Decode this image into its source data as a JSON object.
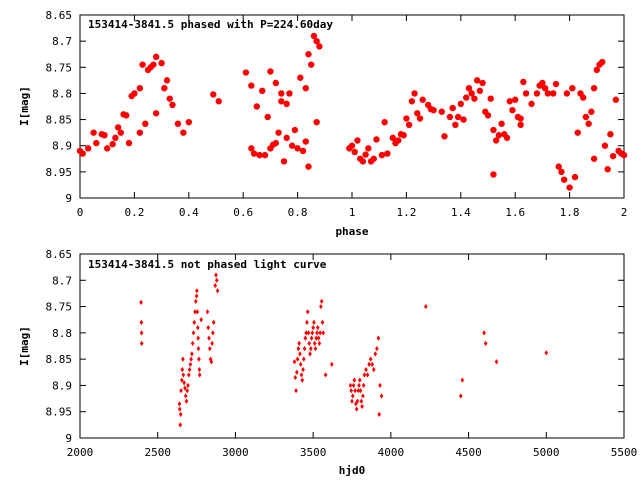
{
  "chart_data": [
    {
      "type": "scatter",
      "title": "153414-3841.5 phased with P=224.60day",
      "xlabel": "phase",
      "ylabel": "I[mag]",
      "xlim": [
        0,
        2
      ],
      "ylim": [
        8.65,
        9.0
      ],
      "y_inverted": true,
      "grid": false,
      "marker_color": "#ff0000",
      "marker": "filled-circle",
      "x_ticks": [
        0,
        0.2,
        0.4,
        0.6,
        0.8,
        1,
        1.2,
        1.4,
        1.6,
        1.8,
        2
      ],
      "x_tick_labels": [
        "0",
        "0.2",
        "0.4",
        "0.6",
        "0.8",
        "1",
        "1.2",
        "1.4",
        "1.6",
        "1.8",
        "2"
      ],
      "y_ticks": [
        8.65,
        8.7,
        8.75,
        8.8,
        8.85,
        8.9,
        8.95,
        9.0
      ],
      "y_tick_labels": [
        "8.65",
        "8.7",
        "8.75",
        "8.8",
        "8.85",
        "8.9",
        "8.95",
        "9"
      ],
      "points": [
        [
          0.0,
          8.91
        ],
        [
          0.01,
          8.915
        ],
        [
          0.03,
          8.905
        ],
        [
          0.05,
          8.875
        ],
        [
          0.06,
          8.895
        ],
        [
          0.08,
          8.878
        ],
        [
          0.09,
          8.88
        ],
        [
          0.1,
          8.905
        ],
        [
          0.12,
          8.897
        ],
        [
          0.13,
          8.885
        ],
        [
          0.14,
          8.865
        ],
        [
          0.15,
          8.875
        ],
        [
          0.16,
          8.84
        ],
        [
          0.17,
          8.842
        ],
        [
          0.18,
          8.895
        ],
        [
          0.19,
          8.805
        ],
        [
          0.2,
          8.8
        ],
        [
          0.22,
          8.79
        ],
        [
          0.22,
          8.875
        ],
        [
          0.23,
          8.745
        ],
        [
          0.24,
          8.858
        ],
        [
          0.25,
          8.755
        ],
        [
          0.26,
          8.75
        ],
        [
          0.27,
          8.745
        ],
        [
          0.28,
          8.838
        ],
        [
          0.28,
          8.73
        ],
        [
          0.3,
          8.742
        ],
        [
          0.31,
          8.79
        ],
        [
          0.32,
          8.775
        ],
        [
          0.33,
          8.81
        ],
        [
          0.34,
          8.822
        ],
        [
          0.36,
          8.858
        ],
        [
          0.38,
          8.875
        ],
        [
          0.4,
          8.855
        ],
        [
          0.49,
          8.802
        ],
        [
          0.51,
          8.815
        ],
        [
          0.61,
          8.76
        ],
        [
          0.63,
          8.785
        ],
        [
          0.63,
          8.905
        ],
        [
          0.64,
          8.915
        ],
        [
          0.65,
          8.825
        ],
        [
          0.66,
          8.918
        ],
        [
          0.67,
          8.795
        ],
        [
          0.68,
          8.918
        ],
        [
          0.69,
          8.845
        ],
        [
          0.7,
          8.758
        ],
        [
          0.7,
          8.905
        ],
        [
          0.71,
          8.898
        ],
        [
          0.72,
          8.78
        ],
        [
          0.72,
          8.895
        ],
        [
          0.73,
          8.875
        ],
        [
          0.74,
          8.8
        ],
        [
          0.74,
          8.815
        ],
        [
          0.75,
          8.93
        ],
        [
          0.76,
          8.885
        ],
        [
          0.76,
          8.82
        ],
        [
          0.77,
          8.8
        ],
        [
          0.78,
          8.9
        ],
        [
          0.79,
          8.87
        ],
        [
          0.8,
          8.905
        ],
        [
          0.81,
          8.77
        ],
        [
          0.82,
          8.91
        ],
        [
          0.83,
          8.892
        ],
        [
          0.83,
          8.79
        ],
        [
          0.84,
          8.94
        ],
        [
          0.84,
          8.725
        ],
        [
          0.85,
          8.745
        ],
        [
          0.86,
          8.69
        ],
        [
          0.87,
          8.855
        ],
        [
          0.87,
          8.7
        ],
        [
          0.88,
          8.71
        ],
        [
          0.99,
          8.905
        ],
        [
          1.0,
          8.9
        ],
        [
          1.01,
          8.912
        ],
        [
          1.02,
          8.89
        ],
        [
          1.03,
          8.925
        ],
        [
          1.04,
          8.93
        ],
        [
          1.05,
          8.917
        ],
        [
          1.06,
          8.905
        ],
        [
          1.07,
          8.93
        ],
        [
          1.08,
          8.925
        ],
        [
          1.09,
          8.888
        ],
        [
          1.11,
          8.918
        ],
        [
          1.12,
          8.855
        ],
        [
          1.13,
          8.915
        ],
        [
          1.15,
          8.885
        ],
        [
          1.16,
          8.895
        ],
        [
          1.17,
          8.89
        ],
        [
          1.18,
          8.878
        ],
        [
          1.19,
          8.88
        ],
        [
          1.2,
          8.848
        ],
        [
          1.21,
          8.86
        ],
        [
          1.22,
          8.815
        ],
        [
          1.23,
          8.8
        ],
        [
          1.24,
          8.838
        ],
        [
          1.25,
          8.848
        ],
        [
          1.26,
          8.812
        ],
        [
          1.28,
          8.822
        ],
        [
          1.29,
          8.83
        ],
        [
          1.3,
          8.832
        ],
        [
          1.33,
          8.835
        ],
        [
          1.34,
          8.882
        ],
        [
          1.36,
          8.845
        ],
        [
          1.37,
          8.828
        ],
        [
          1.38,
          8.86
        ],
        [
          1.39,
          8.845
        ],
        [
          1.4,
          8.82
        ],
        [
          1.41,
          8.85
        ],
        [
          1.42,
          8.808
        ],
        [
          1.43,
          8.79
        ],
        [
          1.44,
          8.8
        ],
        [
          1.45,
          8.81
        ],
        [
          1.46,
          8.775
        ],
        [
          1.47,
          8.795
        ],
        [
          1.48,
          8.78
        ],
        [
          1.49,
          8.835
        ],
        [
          1.5,
          8.842
        ],
        [
          1.51,
          8.81
        ],
        [
          1.52,
          8.87
        ],
        [
          1.52,
          8.955
        ],
        [
          1.53,
          8.89
        ],
        [
          1.54,
          8.88
        ],
        [
          1.55,
          8.858
        ],
        [
          1.56,
          8.878
        ],
        [
          1.57,
          8.885
        ],
        [
          1.58,
          8.815
        ],
        [
          1.59,
          8.832
        ],
        [
          1.6,
          8.812
        ],
        [
          1.61,
          8.845
        ],
        [
          1.62,
          8.86
        ],
        [
          1.62,
          8.848
        ],
        [
          1.63,
          8.778
        ],
        [
          1.64,
          8.8
        ],
        [
          1.66,
          8.82
        ],
        [
          1.68,
          8.8
        ],
        [
          1.69,
          8.785
        ],
        [
          1.7,
          8.78
        ],
        [
          1.71,
          8.79
        ],
        [
          1.72,
          8.8
        ],
        [
          1.74,
          8.8
        ],
        [
          1.75,
          8.782
        ],
        [
          1.76,
          8.94
        ],
        [
          1.77,
          8.95
        ],
        [
          1.78,
          8.965
        ],
        [
          1.79,
          8.8
        ],
        [
          1.8,
          8.98
        ],
        [
          1.81,
          8.79
        ],
        [
          1.82,
          8.96
        ],
        [
          1.83,
          8.875
        ],
        [
          1.84,
          8.8
        ],
        [
          1.85,
          8.808
        ],
        [
          1.86,
          8.845
        ],
        [
          1.87,
          8.858
        ],
        [
          1.88,
          8.835
        ],
        [
          1.89,
          8.79
        ],
        [
          1.89,
          8.925
        ],
        [
          1.9,
          8.755
        ],
        [
          1.91,
          8.745
        ],
        [
          1.92,
          8.74
        ],
        [
          1.93,
          8.9
        ],
        [
          1.94,
          8.945
        ],
        [
          1.95,
          8.878
        ],
        [
          1.96,
          8.92
        ],
        [
          1.97,
          8.812
        ],
        [
          1.98,
          8.91
        ],
        [
          1.99,
          8.915
        ],
        [
          2.0,
          8.918
        ]
      ]
    },
    {
      "type": "scatter",
      "title": "153414-3841.5 not phased light curve",
      "xlabel": "hjd0",
      "ylabel": "I[mag]",
      "xlim": [
        2000,
        5500
      ],
      "ylim": [
        8.65,
        9.0
      ],
      "y_inverted": true,
      "grid": false,
      "marker_color": "#ff0000",
      "marker": "small-diamond",
      "x_ticks": [
        2000,
        2500,
        3000,
        3500,
        4000,
        4500,
        5000,
        5500
      ],
      "x_tick_labels": [
        "2000",
        "2500",
        "3000",
        "3500",
        "4000",
        "4500",
        "5000",
        "5500"
      ],
      "y_ticks": [
        8.65,
        8.7,
        8.75,
        8.8,
        8.85,
        8.9,
        8.95,
        9.0
      ],
      "y_tick_labels": [
        "8.65",
        "8.7",
        "8.75",
        "8.8",
        "8.85",
        "8.9",
        "8.95",
        "9"
      ],
      "points": [
        [
          2393,
          8.742
        ],
        [
          2395,
          8.78
        ],
        [
          2396,
          8.8
        ],
        [
          2397,
          8.82
        ],
        [
          2640,
          8.935
        ],
        [
          2642,
          8.945
        ],
        [
          2645,
          8.975
        ],
        [
          2648,
          8.955
        ],
        [
          2650,
          8.91
        ],
        [
          2655,
          8.89
        ],
        [
          2658,
          8.87
        ],
        [
          2662,
          8.85
        ],
        [
          2665,
          8.88
        ],
        [
          2670,
          8.895
        ],
        [
          2675,
          8.905
        ],
        [
          2680,
          8.92
        ],
        [
          2685,
          8.93
        ],
        [
          2690,
          8.91
        ],
        [
          2695,
          8.9
        ],
        [
          2700,
          8.88
        ],
        [
          2705,
          8.87
        ],
        [
          2710,
          8.86
        ],
        [
          2715,
          8.85
        ],
        [
          2720,
          8.84
        ],
        [
          2725,
          8.82
        ],
        [
          2730,
          8.8
        ],
        [
          2735,
          8.78
        ],
        [
          2740,
          8.76
        ],
        [
          2745,
          8.74
        ],
        [
          2750,
          8.73
        ],
        [
          2752,
          8.72
        ],
        [
          2755,
          8.76
        ],
        [
          2758,
          8.79
        ],
        [
          2760,
          8.81
        ],
        [
          2762,
          8.83
        ],
        [
          2765,
          8.85
        ],
        [
          2768,
          8.87
        ],
        [
          2770,
          8.88
        ],
        [
          2780,
          8.775
        ],
        [
          2820,
          8.76
        ],
        [
          2825,
          8.79
        ],
        [
          2830,
          8.81
        ],
        [
          2835,
          8.83
        ],
        [
          2840,
          8.85
        ],
        [
          2845,
          8.855
        ],
        [
          2850,
          8.82
        ],
        [
          2855,
          8.8
        ],
        [
          2860,
          8.78
        ],
        [
          2870,
          8.71
        ],
        [
          2875,
          8.69
        ],
        [
          2880,
          8.7
        ],
        [
          2885,
          8.72
        ],
        [
          3380,
          8.855
        ],
        [
          3385,
          8.885
        ],
        [
          3390,
          8.91
        ],
        [
          3395,
          8.875
        ],
        [
          3400,
          8.85
        ],
        [
          3405,
          8.83
        ],
        [
          3410,
          8.82
        ],
        [
          3415,
          8.84
        ],
        [
          3420,
          8.86
        ],
        [
          3425,
          8.88
        ],
        [
          3430,
          8.89
        ],
        [
          3435,
          8.87
        ],
        [
          3440,
          8.85
        ],
        [
          3445,
          8.83
        ],
        [
          3450,
          8.81
        ],
        [
          3455,
          8.8
        ],
        [
          3460,
          8.78
        ],
        [
          3465,
          8.76
        ],
        [
          3470,
          8.8
        ],
        [
          3475,
          8.82
        ],
        [
          3480,
          8.84
        ],
        [
          3485,
          8.83
        ],
        [
          3490,
          8.81
        ],
        [
          3495,
          8.8
        ],
        [
          3500,
          8.79
        ],
        [
          3505,
          8.78
        ],
        [
          3510,
          8.82
        ],
        [
          3515,
          8.83
        ],
        [
          3520,
          8.81
        ],
        [
          3525,
          8.8
        ],
        [
          3530,
          8.79
        ],
        [
          3535,
          8.81
        ],
        [
          3540,
          8.82
        ],
        [
          3545,
          8.8
        ],
        [
          3550,
          8.75
        ],
        [
          3555,
          8.74
        ],
        [
          3560,
          8.78
        ],
        [
          3565,
          8.8
        ],
        [
          3580,
          8.88
        ],
        [
          3620,
          8.86
        ],
        [
          3740,
          8.9
        ],
        [
          3745,
          8.91
        ],
        [
          3750,
          8.93
        ],
        [
          3755,
          8.92
        ],
        [
          3760,
          8.9
        ],
        [
          3765,
          8.89
        ],
        [
          3770,
          8.91
        ],
        [
          3775,
          8.935
        ],
        [
          3780,
          8.945
        ],
        [
          3785,
          8.93
        ],
        [
          3790,
          8.91
        ],
        [
          3795,
          8.9
        ],
        [
          3800,
          8.89
        ],
        [
          3805,
          8.91
        ],
        [
          3810,
          8.93
        ],
        [
          3815,
          8.94
        ],
        [
          3820,
          8.92
        ],
        [
          3825,
          8.9
        ],
        [
          3830,
          8.88
        ],
        [
          3840,
          8.87
        ],
        [
          3850,
          8.88
        ],
        [
          3860,
          8.86
        ],
        [
          3870,
          8.85
        ],
        [
          3880,
          8.86
        ],
        [
          3890,
          8.87
        ],
        [
          3900,
          8.84
        ],
        [
          3910,
          8.83
        ],
        [
          3920,
          8.81
        ],
        [
          3925,
          8.955
        ],
        [
          3930,
          8.9
        ],
        [
          3940,
          8.92
        ],
        [
          4225,
          8.75
        ],
        [
          4450,
          8.92
        ],
        [
          4460,
          8.89
        ],
        [
          4600,
          8.8
        ],
        [
          4610,
          8.82
        ],
        [
          4680,
          8.855
        ],
        [
          5000,
          8.838
        ]
      ]
    }
  ]
}
